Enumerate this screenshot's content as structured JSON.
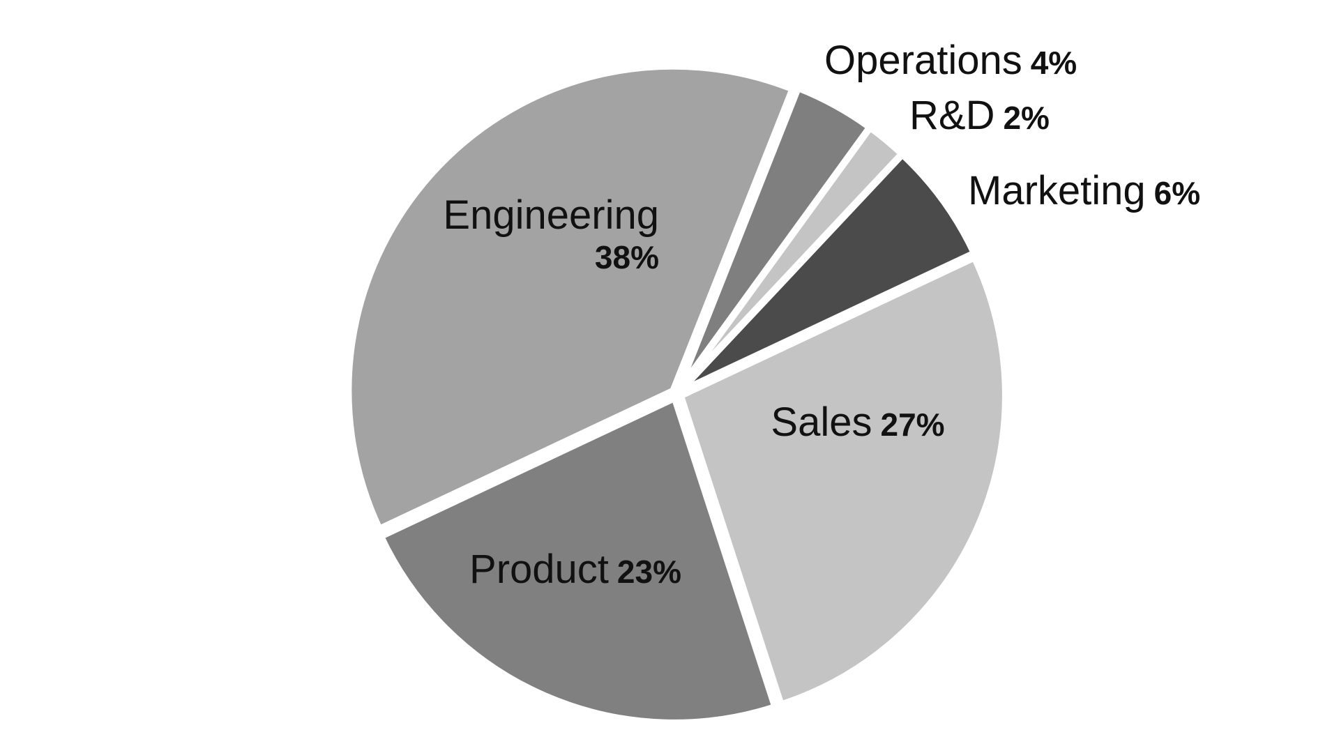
{
  "chart_data": {
    "type": "pie",
    "title": "",
    "slices": [
      {
        "label": "Sales",
        "value": 27,
        "value_label": "27%",
        "color": "#c4c4c4"
      },
      {
        "label": "Product",
        "value": 23,
        "value_label": "23%",
        "color": "#808080"
      },
      {
        "label": "Engineering",
        "value": 38,
        "value_label": "38%",
        "color": "#a3a3a3"
      },
      {
        "label": "Operations",
        "value": 4,
        "value_label": "4%",
        "color": "#7f7f7f"
      },
      {
        "label": "R&D",
        "value": 2,
        "value_label": "2%",
        "color": "#c4c4c4"
      },
      {
        "label": "Marketing",
        "value": 6,
        "value_label": "6%",
        "color": "#4b4b4b"
      }
    ],
    "legend": "none",
    "data_labels": "category and percent"
  }
}
